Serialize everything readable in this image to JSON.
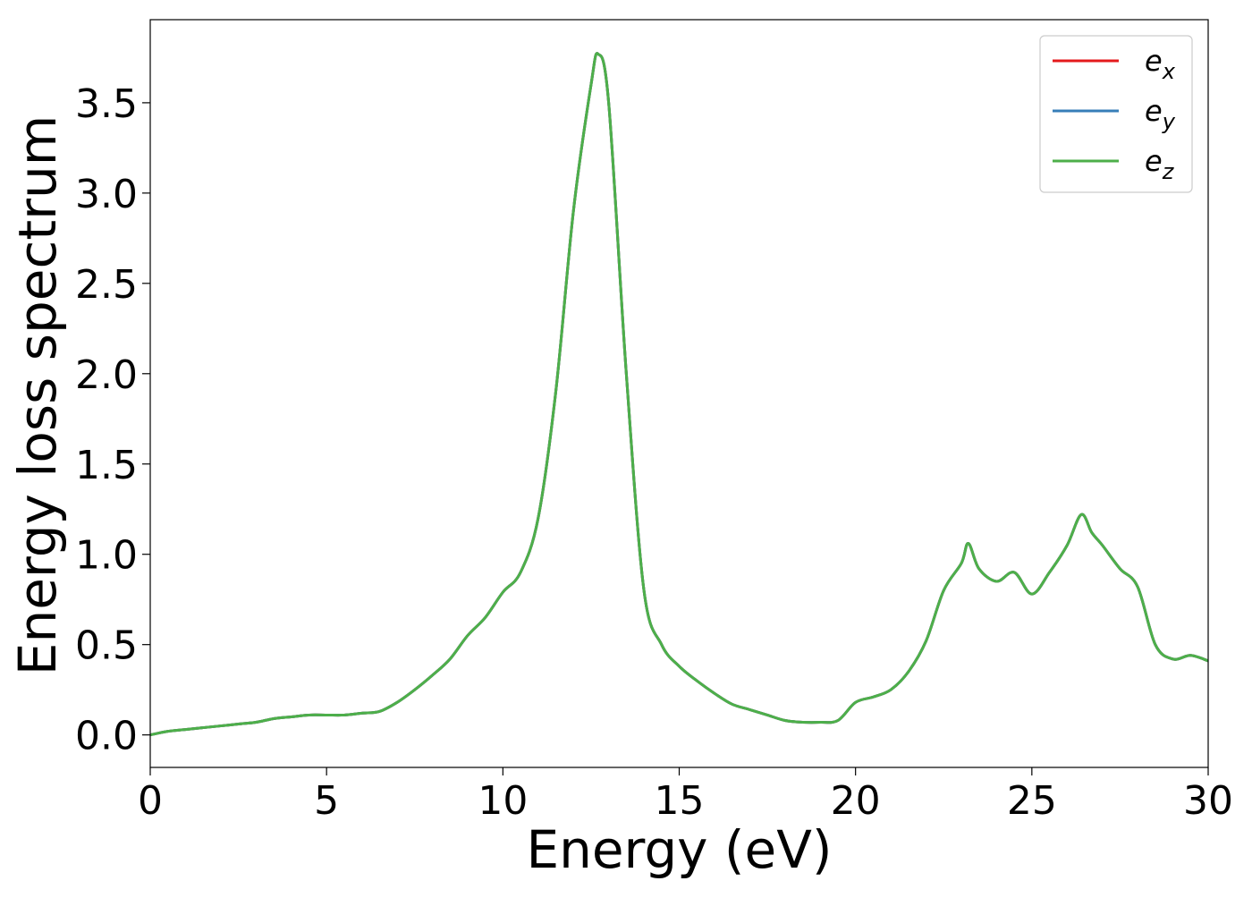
{
  "chart_data": {
    "type": "line",
    "title": "",
    "xlabel": "Energy (eV)",
    "ylabel": "Energy loss spectrum",
    "xlim": [
      0,
      30
    ],
    "ylim": [
      -0.18,
      3.96
    ],
    "xticks": [
      0,
      5,
      10,
      15,
      20,
      25,
      30
    ],
    "xtick_labels": [
      "0",
      "5",
      "10",
      "15",
      "20",
      "25",
      "30"
    ],
    "yticks": [
      0.0,
      0.5,
      1.0,
      1.5,
      2.0,
      2.5,
      3.0,
      3.5
    ],
    "ytick_labels": [
      "0.0",
      "0.5",
      "1.0",
      "1.5",
      "2.0",
      "2.5",
      "3.0",
      "3.5"
    ],
    "grid": false,
    "legend_position": "top-right",
    "x": [
      0,
      0.5,
      1,
      1.5,
      2,
      2.5,
      3,
      3.5,
      4,
      4.5,
      5,
      5.5,
      6,
      6.5,
      7,
      7.5,
      8,
      8.5,
      9,
      9.5,
      10,
      10.5,
      11,
      11.5,
      12,
      12.5,
      12.7,
      13,
      13.5,
      14,
      14.5,
      15,
      15.5,
      16,
      16.5,
      17,
      17.5,
      18,
      18.5,
      19,
      19.5,
      20,
      20.5,
      21,
      21.5,
      22,
      22.5,
      23,
      23.2,
      23.5,
      24,
      24.5,
      25,
      25.5,
      26,
      26.4,
      26.7,
      27,
      27.5,
      28,
      28.5,
      29,
      29.5,
      30
    ],
    "series": [
      {
        "name": "e",
        "subscript": "x",
        "color": "#e41a1c",
        "values": [
          0.0,
          0.02,
          0.03,
          0.04,
          0.05,
          0.06,
          0.07,
          0.09,
          0.1,
          0.11,
          0.11,
          0.11,
          0.12,
          0.13,
          0.18,
          0.25,
          0.33,
          0.42,
          0.55,
          0.65,
          0.79,
          0.9,
          1.2,
          1.9,
          2.9,
          3.6,
          3.77,
          3.5,
          2.0,
          0.8,
          0.5,
          0.38,
          0.3,
          0.23,
          0.17,
          0.14,
          0.11,
          0.08,
          0.07,
          0.07,
          0.08,
          0.18,
          0.21,
          0.25,
          0.35,
          0.52,
          0.8,
          0.95,
          1.06,
          0.92,
          0.85,
          0.9,
          0.78,
          0.9,
          1.05,
          1.22,
          1.12,
          1.05,
          0.92,
          0.82,
          0.5,
          0.42,
          0.44,
          0.41
        ]
      },
      {
        "name": "e",
        "subscript": "y",
        "color": "#377eb8",
        "values": [
          0.0,
          0.02,
          0.03,
          0.04,
          0.05,
          0.06,
          0.07,
          0.09,
          0.1,
          0.11,
          0.11,
          0.11,
          0.12,
          0.13,
          0.18,
          0.25,
          0.33,
          0.42,
          0.55,
          0.65,
          0.79,
          0.9,
          1.2,
          1.9,
          2.9,
          3.6,
          3.77,
          3.5,
          2.0,
          0.8,
          0.5,
          0.38,
          0.3,
          0.23,
          0.17,
          0.14,
          0.11,
          0.08,
          0.07,
          0.07,
          0.08,
          0.18,
          0.21,
          0.25,
          0.35,
          0.52,
          0.8,
          0.95,
          1.06,
          0.92,
          0.85,
          0.9,
          0.78,
          0.9,
          1.05,
          1.22,
          1.12,
          1.05,
          0.92,
          0.82,
          0.5,
          0.42,
          0.44,
          0.41
        ]
      },
      {
        "name": "e",
        "subscript": "z",
        "color": "#4daf4a",
        "values": [
          0.0,
          0.02,
          0.03,
          0.04,
          0.05,
          0.06,
          0.07,
          0.09,
          0.1,
          0.11,
          0.11,
          0.11,
          0.12,
          0.13,
          0.18,
          0.25,
          0.33,
          0.42,
          0.55,
          0.65,
          0.79,
          0.9,
          1.2,
          1.9,
          2.9,
          3.6,
          3.77,
          3.5,
          2.0,
          0.8,
          0.5,
          0.38,
          0.3,
          0.23,
          0.17,
          0.14,
          0.11,
          0.08,
          0.07,
          0.07,
          0.08,
          0.18,
          0.21,
          0.25,
          0.35,
          0.52,
          0.8,
          0.95,
          1.06,
          0.92,
          0.85,
          0.9,
          0.78,
          0.9,
          1.05,
          1.22,
          1.12,
          1.05,
          0.92,
          0.82,
          0.5,
          0.42,
          0.44,
          0.41
        ]
      }
    ]
  }
}
